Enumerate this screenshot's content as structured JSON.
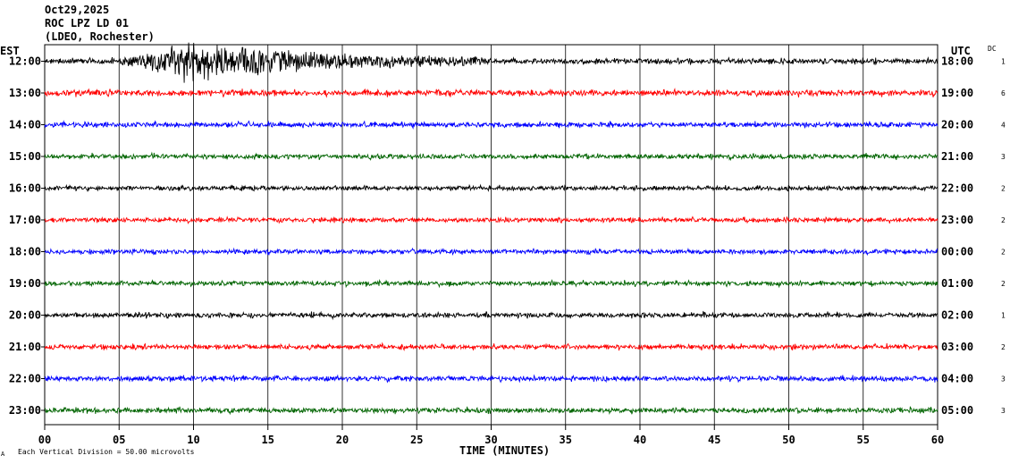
{
  "header": {
    "date": "Oct29,2025",
    "station": "ROC LPZ LD 01",
    "network": "(LDEO, Rochester)"
  },
  "left_axis_title": "EST",
  "right_axis_title": "UTC",
  "dc_title": "DC",
  "footer": {
    "scale_note": "Each Vertical Division =   50.00 microvolts",
    "corner_mark": "A"
  },
  "chart_data": {
    "type": "line",
    "title": "",
    "xlabel": "TIME (MINUTES)",
    "ylabel": "",
    "xlim": [
      0,
      60
    ],
    "x_ticks": [
      "00",
      "05",
      "10",
      "15",
      "20",
      "25",
      "30",
      "35",
      "40",
      "45",
      "50",
      "55",
      "60"
    ],
    "grid": true,
    "trace_colors": [
      "#000000",
      "#ff0000",
      "#0000ff",
      "#006400"
    ],
    "rows": [
      {
        "est": "12:00",
        "utc": "18:00",
        "dc": "1",
        "color": "#000000",
        "amplitude": 1.0,
        "event": {
          "start_min": 5.0,
          "peak_min": 10.0,
          "end_min": 30.0,
          "peak_amplitude": 24
        }
      },
      {
        "est": "13:00",
        "utc": "19:00",
        "dc": "6",
        "color": "#ff0000",
        "amplitude": 1.1
      },
      {
        "est": "14:00",
        "utc": "20:00",
        "dc": "4",
        "color": "#0000ff",
        "amplitude": 0.95
      },
      {
        "est": "15:00",
        "utc": "21:00",
        "dc": "3",
        "color": "#006400",
        "amplitude": 0.9
      },
      {
        "est": "16:00",
        "utc": "22:00",
        "dc": "2",
        "color": "#000000",
        "amplitude": 0.85
      },
      {
        "est": "17:00",
        "utc": "23:00",
        "dc": "2",
        "color": "#ff0000",
        "amplitude": 0.85
      },
      {
        "est": "18:00",
        "utc": "00:00",
        "dc": "2",
        "color": "#0000ff",
        "amplitude": 0.85
      },
      {
        "est": "19:00",
        "utc": "01:00",
        "dc": "2",
        "color": "#006400",
        "amplitude": 0.85
      },
      {
        "est": "20:00",
        "utc": "02:00",
        "dc": "1",
        "color": "#000000",
        "amplitude": 0.9
      },
      {
        "est": "21:00",
        "utc": "03:00",
        "dc": "2",
        "color": "#ff0000",
        "amplitude": 0.9
      },
      {
        "est": "22:00",
        "utc": "04:00",
        "dc": "3",
        "color": "#0000ff",
        "amplitude": 0.95
      },
      {
        "est": "23:00",
        "utc": "05:00",
        "dc": "3",
        "color": "#006400",
        "amplitude": 0.95
      }
    ]
  }
}
